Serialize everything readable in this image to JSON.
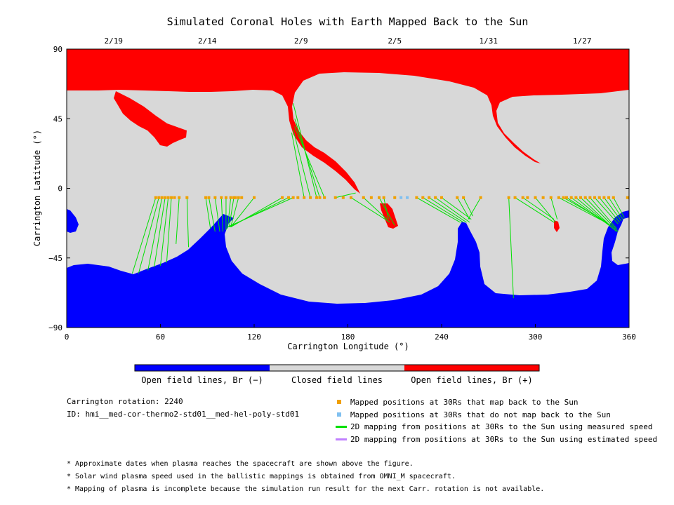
{
  "chart_data": {
    "type": "map",
    "title": "Simulated Coronal Holes with Earth Mapped Back to the Sun",
    "xlabel": "Carrington Longitude (°)",
    "ylabel": "Carrington Latitude (°)",
    "xlim": [
      0,
      360
    ],
    "ylim": [
      -90,
      90
    ],
    "x_ticks": [
      0,
      60,
      120,
      180,
      240,
      300,
      360
    ],
    "y_ticks": [
      90,
      45,
      0,
      -45,
      -90
    ],
    "date_ticks": [
      {
        "label": "2/19",
        "lon": 30
      },
      {
        "label": "2/14",
        "lon": 90
      },
      {
        "label": "2/9",
        "lon": 150
      },
      {
        "label": "2/5",
        "lon": 210
      },
      {
        "label": "1/31",
        "lon": 270
      },
      {
        "label": "1/27",
        "lon": 330
      }
    ],
    "colors": {
      "positive_open": "#ff0000",
      "negative_open": "#0000ff",
      "closed": "#d8d8d8",
      "mapped_point": "#f0a000",
      "unmapped_point": "#80c0f0",
      "measured_line": "#00e000",
      "estimated_line": "#c080ff"
    },
    "mapped_points_lon": [
      57,
      59,
      61,
      63,
      65,
      67,
      69,
      72,
      77,
      89,
      91,
      95,
      99,
      102,
      105,
      107,
      108,
      110,
      112,
      120,
      138,
      142,
      145,
      148,
      152,
      156,
      160,
      162,
      165,
      172,
      177,
      182,
      190,
      195,
      200,
      203,
      210,
      224,
      228,
      232,
      236,
      240,
      250,
      254,
      265,
      283,
      287,
      292,
      295,
      300,
      305,
      310,
      315,
      318,
      320,
      323,
      326,
      329,
      332,
      335,
      338,
      341,
      344,
      347,
      350,
      359
    ],
    "unmapped_points_lon": [
      214,
      218
    ],
    "mapped_latitude": -6,
    "connections": [
      {
        "from": [
          57,
          -6
        ],
        "to": [
          42,
          -55
        ]
      },
      {
        "from": [
          59,
          -6
        ],
        "to": [
          46,
          -55
        ]
      },
      {
        "from": [
          61,
          -6
        ],
        "to": [
          52,
          -53
        ]
      },
      {
        "from": [
          63,
          -6
        ],
        "to": [
          56,
          -51
        ]
      },
      {
        "from": [
          65,
          -6
        ],
        "to": [
          60,
          -50
        ]
      },
      {
        "from": [
          67,
          -6
        ],
        "to": [
          64,
          -48
        ]
      },
      {
        "from": [
          72,
          -6
        ],
        "to": [
          70,
          -36
        ]
      },
      {
        "from": [
          77,
          -6
        ],
        "to": [
          78,
          -38
        ]
      },
      {
        "from": [
          89,
          -6
        ],
        "to": [
          92,
          -26
        ]
      },
      {
        "from": [
          91,
          -6
        ],
        "to": [
          95,
          -28
        ]
      },
      {
        "from": [
          95,
          -6
        ],
        "to": [
          98,
          -28
        ]
      },
      {
        "from": [
          99,
          -6
        ],
        "to": [
          100,
          -28
        ]
      },
      {
        "from": [
          102,
          -6
        ],
        "to": [
          102,
          -27
        ]
      },
      {
        "from": [
          105,
          -6
        ],
        "to": [
          103,
          -26
        ]
      },
      {
        "from": [
          107,
          -6
        ],
        "to": [
          104,
          -25
        ]
      },
      {
        "from": [
          110,
          -6
        ],
        "to": [
          105,
          -25
        ]
      },
      {
        "from": [
          120,
          -6
        ],
        "to": [
          105,
          -25
        ]
      },
      {
        "from": [
          138,
          -6
        ],
        "to": [
          105,
          -25
        ]
      },
      {
        "from": [
          142,
          -6
        ],
        "to": [
          104,
          -25
        ]
      },
      {
        "from": [
          145,
          -6
        ],
        "to": [
          103,
          -25
        ]
      },
      {
        "from": [
          160,
          -6
        ],
        "to": [
          145,
          55
        ]
      },
      {
        "from": [
          162,
          -6
        ],
        "to": [
          146,
          45
        ]
      },
      {
        "from": [
          165,
          -6
        ],
        "to": [
          146,
          40
        ]
      },
      {
        "from": [
          156,
          -6
        ],
        "to": [
          145,
          38
        ]
      },
      {
        "from": [
          152,
          -6
        ],
        "to": [
          144,
          36
        ]
      },
      {
        "from": [
          172,
          -6
        ],
        "to": [
          185,
          -3
        ]
      },
      {
        "from": [
          182,
          -6
        ],
        "to": [
          207,
          -22
        ]
      },
      {
        "from": [
          190,
          -6
        ],
        "to": [
          205,
          -20
        ]
      },
      {
        "from": [
          200,
          -6
        ],
        "to": [
          210,
          -24
        ]
      },
      {
        "from": [
          203,
          -6
        ],
        "to": [
          206,
          -20
        ]
      },
      {
        "from": [
          224,
          -6
        ],
        "to": [
          252,
          -22
        ]
      },
      {
        "from": [
          228,
          -6
        ],
        "to": [
          254,
          -22
        ]
      },
      {
        "from": [
          232,
          -6
        ],
        "to": [
          256,
          -22
        ]
      },
      {
        "from": [
          236,
          -6
        ],
        "to": [
          258,
          -22
        ]
      },
      {
        "from": [
          240,
          -6
        ],
        "to": [
          259,
          -20
        ]
      },
      {
        "from": [
          250,
          -6
        ],
        "to": [
          258,
          -20
        ]
      },
      {
        "from": [
          254,
          -6
        ],
        "to": [
          260,
          -18
        ]
      },
      {
        "from": [
          265,
          -6
        ],
        "to": [
          257,
          -20
        ]
      },
      {
        "from": [
          283,
          -6
        ],
        "to": [
          286,
          -71
        ]
      },
      {
        "from": [
          287,
          -6
        ],
        "to": [
          312,
          -22
        ]
      },
      {
        "from": [
          292,
          -6
        ],
        "to": [
          312,
          -20
        ]
      },
      {
        "from": [
          300,
          -6
        ],
        "to": [
          313,
          -22
        ]
      },
      {
        "from": [
          310,
          -6
        ],
        "to": [
          314,
          -20
        ]
      },
      {
        "from": [
          315,
          -6
        ],
        "to": [
          345,
          -22
        ]
      },
      {
        "from": [
          318,
          -6
        ],
        "to": [
          346,
          -22
        ]
      },
      {
        "from": [
          320,
          -6
        ],
        "to": [
          348,
          -24
        ]
      },
      {
        "from": [
          323,
          -6
        ],
        "to": [
          350,
          -26
        ]
      },
      {
        "from": [
          326,
          -6
        ],
        "to": [
          351,
          -27
        ]
      },
      {
        "from": [
          329,
          -6
        ],
        "to": [
          352,
          -28
        ]
      },
      {
        "from": [
          332,
          -6
        ],
        "to": [
          353,
          -28
        ]
      },
      {
        "from": [
          335,
          -6
        ],
        "to": [
          352,
          -26
        ]
      },
      {
        "from": [
          338,
          -6
        ],
        "to": [
          353,
          -23
        ]
      },
      {
        "from": [
          341,
          -6
        ],
        "to": [
          354,
          -22
        ]
      },
      {
        "from": [
          344,
          -6
        ],
        "to": [
          355,
          -21
        ]
      },
      {
        "from": [
          347,
          -6
        ],
        "to": [
          356,
          -20
        ]
      },
      {
        "from": [
          350,
          -6
        ],
        "to": [
          357,
          -19
        ]
      }
    ]
  },
  "colorbar_labels": [
    "Open field lines, Br (−)",
    "Closed field lines",
    "Open field lines, Br (+)"
  ],
  "info": {
    "rotation": "Carrington rotation: 2240",
    "id": "ID: hmi__med-cor-thermo2-std01__med-hel-poly-std01"
  },
  "legend": [
    "Mapped positions at 30Rs that map back to the Sun",
    "Mapped positions at 30Rs that do not map back to the Sun",
    "2D mapping from positions at 30Rs to the Sun using measured speed",
    "2D mapping from positions at 30Rs to the Sun using estimated speed"
  ],
  "notes": [
    "* Approximate dates when plasma reaches the spacecraft are shown above the figure.",
    "* Solar wind plasma speed used in the ballistic mappings is obtained from OMNI_M spacecraft.",
    "* Mapping of plasma is incomplete because the simulation run result for the next Carr. rotation is not available."
  ]
}
